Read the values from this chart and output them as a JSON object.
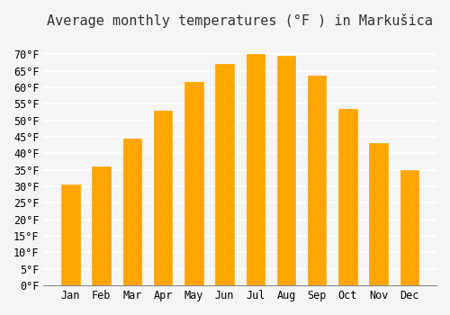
{
  "title": "Average monthly temperatures (°F ) in Markušica",
  "months": [
    "Jan",
    "Feb",
    "Mar",
    "Apr",
    "May",
    "Jun",
    "Jul",
    "Aug",
    "Sep",
    "Oct",
    "Nov",
    "Dec"
  ],
  "values": [
    30.5,
    36.0,
    44.5,
    53.0,
    61.5,
    67.0,
    70.0,
    69.5,
    63.5,
    53.5,
    43.0,
    35.0
  ],
  "bar_color": "#FFA500",
  "bar_edge_color": "#E8960A",
  "ylim": [
    0,
    75
  ],
  "yticks": [
    0,
    5,
    10,
    15,
    20,
    25,
    30,
    35,
    40,
    45,
    50,
    55,
    60,
    65,
    70
  ],
  "background_color": "#F5F5F5",
  "grid_color": "#FFFFFF",
  "title_fontsize": 11,
  "tick_fontsize": 8.5,
  "font_family": "monospace"
}
